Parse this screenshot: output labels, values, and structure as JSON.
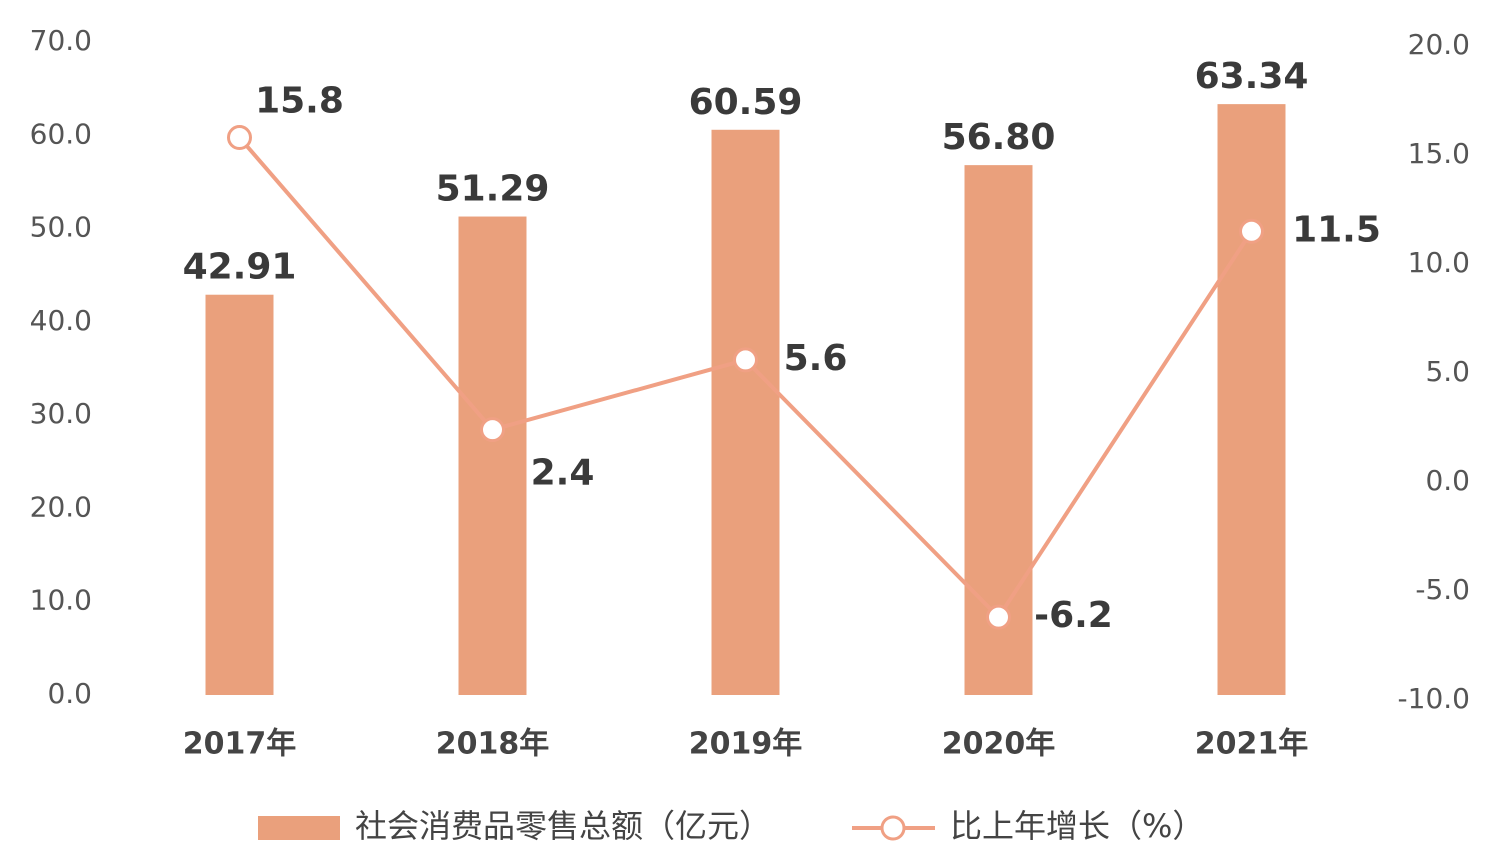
{
  "chart_data": {
    "type": "bar",
    "categories": [
      "2017年",
      "2018年",
      "2019年",
      "2020年",
      "2021年"
    ],
    "series": [
      {
        "name": "社会消费品零售总额（亿元）",
        "type": "bar",
        "color": "#eaa07c",
        "values": [
          42.91,
          51.29,
          60.59,
          56.8,
          63.34
        ],
        "value_labels": [
          "42.91",
          "51.29",
          "60.59",
          "56.80",
          "63.34"
        ]
      },
      {
        "name": "比上年增长（%）",
        "type": "line",
        "axis": "y2",
        "color": "#f0a084",
        "values": [
          15.8,
          2.4,
          5.6,
          -6.2,
          11.5
        ]
      }
    ],
    "ylim": [
      0,
      70
    ],
    "yticks": [
      {
        "value": 0,
        "label": "0.0"
      },
      {
        "value": 10,
        "label": "10.0"
      },
      {
        "value": 20,
        "label": "20.0"
      },
      {
        "value": 30,
        "label": "30.0"
      },
      {
        "value": 40,
        "label": "40.0"
      },
      {
        "value": 50,
        "label": "50.0"
      },
      {
        "value": 60,
        "label": "60.0"
      },
      {
        "value": 70,
        "label": "70.0"
      }
    ],
    "y2lim": [
      -10,
      20
    ],
    "y2ticks": [
      {
        "value": -10,
        "label": "-10.0"
      },
      {
        "value": -5,
        "label": "-5.0"
      },
      {
        "value": 0,
        "label": "0.0"
      },
      {
        "value": 5,
        "label": "5.0"
      },
      {
        "value": 10,
        "label": "10.0"
      },
      {
        "value": 15,
        "label": "15.0"
      },
      {
        "value": 20,
        "label": "20.0"
      }
    ],
    "grid": false,
    "legend": "bottom"
  }
}
